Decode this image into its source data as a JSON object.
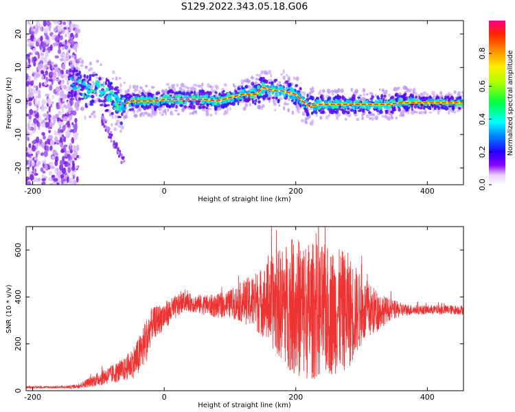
{
  "title": "S129.2022.343.05.18.G06",
  "chart_data": [
    {
      "type": "heatmap",
      "name": "spectrogram",
      "xlabel": "Height of straight line (km)",
      "ylabel": "Frequency (Hz)",
      "xlim": [
        -210,
        455
      ],
      "ylim": [
        -25,
        24
      ],
      "xticks": [
        -200,
        0,
        200,
        400
      ],
      "yticks": [
        -20,
        -10,
        0,
        10,
        20
      ],
      "ridge": {
        "x": [
          -140,
          -130,
          -120,
          -110,
          -100,
          -90,
          -80,
          -70,
          -65,
          -60,
          -50,
          -40,
          -30,
          -20,
          -10,
          0,
          20,
          40,
          60,
          80,
          100,
          120,
          140,
          150,
          160,
          170,
          180,
          190,
          200,
          210,
          220,
          240,
          260,
          280,
          300,
          320,
          340,
          360,
          380,
          400,
          420,
          440,
          455
        ],
        "y": [
          6,
          5,
          3,
          3,
          4,
          2,
          1,
          -1,
          -2,
          -1,
          0,
          0,
          0,
          0,
          0,
          0.5,
          0.5,
          0.5,
          0.5,
          0,
          1,
          2,
          2,
          4,
          3.5,
          3,
          3,
          2.5,
          2,
          0,
          -1.5,
          -1,
          -1,
          -1,
          -1,
          -1,
          -1,
          -0.5,
          -0.5,
          -0.5,
          -0.5,
          -0.5,
          -0.5
        ]
      }
    },
    {
      "type": "line",
      "name": "snr",
      "xlabel": "Height of straight line (km)",
      "ylabel": "SNR (10 * v/v)",
      "xlim": [
        -210,
        455
      ],
      "ylim": [
        0,
        700
      ],
      "xticks": [
        -200,
        0,
        200,
        400
      ],
      "yticks": [
        0,
        200,
        400,
        600
      ],
      "color": "#ee3333",
      "envelope": {
        "x": [
          -210,
          -150,
          -130,
          -100,
          -80,
          -60,
          -40,
          -25,
          -20,
          0,
          20,
          30,
          50,
          80,
          100,
          120,
          150,
          180,
          200,
          220,
          250,
          280,
          300,
          320,
          340,
          360,
          380,
          400,
          420,
          455
        ],
        "mean": [
          15,
          15,
          20,
          50,
          70,
          90,
          140,
          230,
          280,
          320,
          360,
          380,
          370,
          360,
          370,
          380,
          380,
          370,
          360,
          340,
          340,
          340,
          340,
          340,
          345,
          345,
          345,
          345,
          345,
          345
        ],
        "amp": [
          5,
          5,
          10,
          30,
          40,
          50,
          80,
          100,
          70,
          60,
          50,
          40,
          40,
          50,
          60,
          90,
          150,
          250,
          300,
          300,
          280,
          250,
          150,
          100,
          50,
          30,
          20,
          20,
          20,
          20
        ]
      }
    }
  ],
  "colorbar": {
    "label": "Normalized spectral amplitude",
    "ticks": [
      "0.0",
      "0.2",
      "0.4",
      "0.6",
      "0.8"
    ],
    "range": [
      0,
      1
    ]
  }
}
